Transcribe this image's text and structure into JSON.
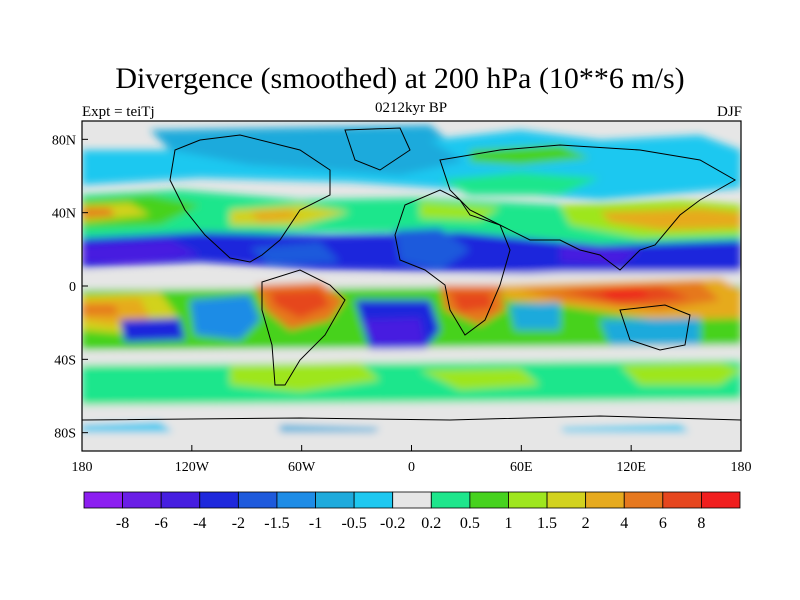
{
  "title": "Divergence (smoothed) at 200 hPa (10**6 m/s)",
  "subtitle_left": "Expt = teiTj",
  "subtitle_center": "0212kyr BP",
  "subtitle_right": "DJF",
  "map": {
    "lon_ticks": [
      "180",
      "120W",
      "60W",
      "0",
      "60E",
      "120E",
      "180"
    ],
    "lat_ticks": [
      "80N",
      "40N",
      "0",
      "40S",
      "80S"
    ],
    "lon_values": [
      -180,
      -120,
      -60,
      0,
      60,
      120,
      180
    ],
    "lat_values": [
      80,
      40,
      0,
      -40,
      -80
    ],
    "lat_range": [
      -90,
      90
    ],
    "lon_range": [
      -180,
      180
    ],
    "ocean_fill": "#e6e6e6"
  },
  "colorbar": {
    "labels": [
      "-8",
      "-6",
      "-4",
      "-2",
      "-1.5",
      "-1",
      "-0.5",
      "-0.2",
      "0.2",
      "0.5",
      "1",
      "1.5",
      "2",
      "4",
      "6",
      "8"
    ],
    "colors": [
      "#8c1ef0",
      "#6a1ee6",
      "#461ee0",
      "#1e28dc",
      "#1e5adc",
      "#1e8ce6",
      "#1eaadc",
      "#1ec8f0",
      "#e6e6e6",
      "#1ee68c",
      "#46d21e",
      "#9ee61e",
      "#d2d21e",
      "#e6aa1e",
      "#e6781e",
      "#e6461e",
      "#f01e1e"
    ]
  }
}
